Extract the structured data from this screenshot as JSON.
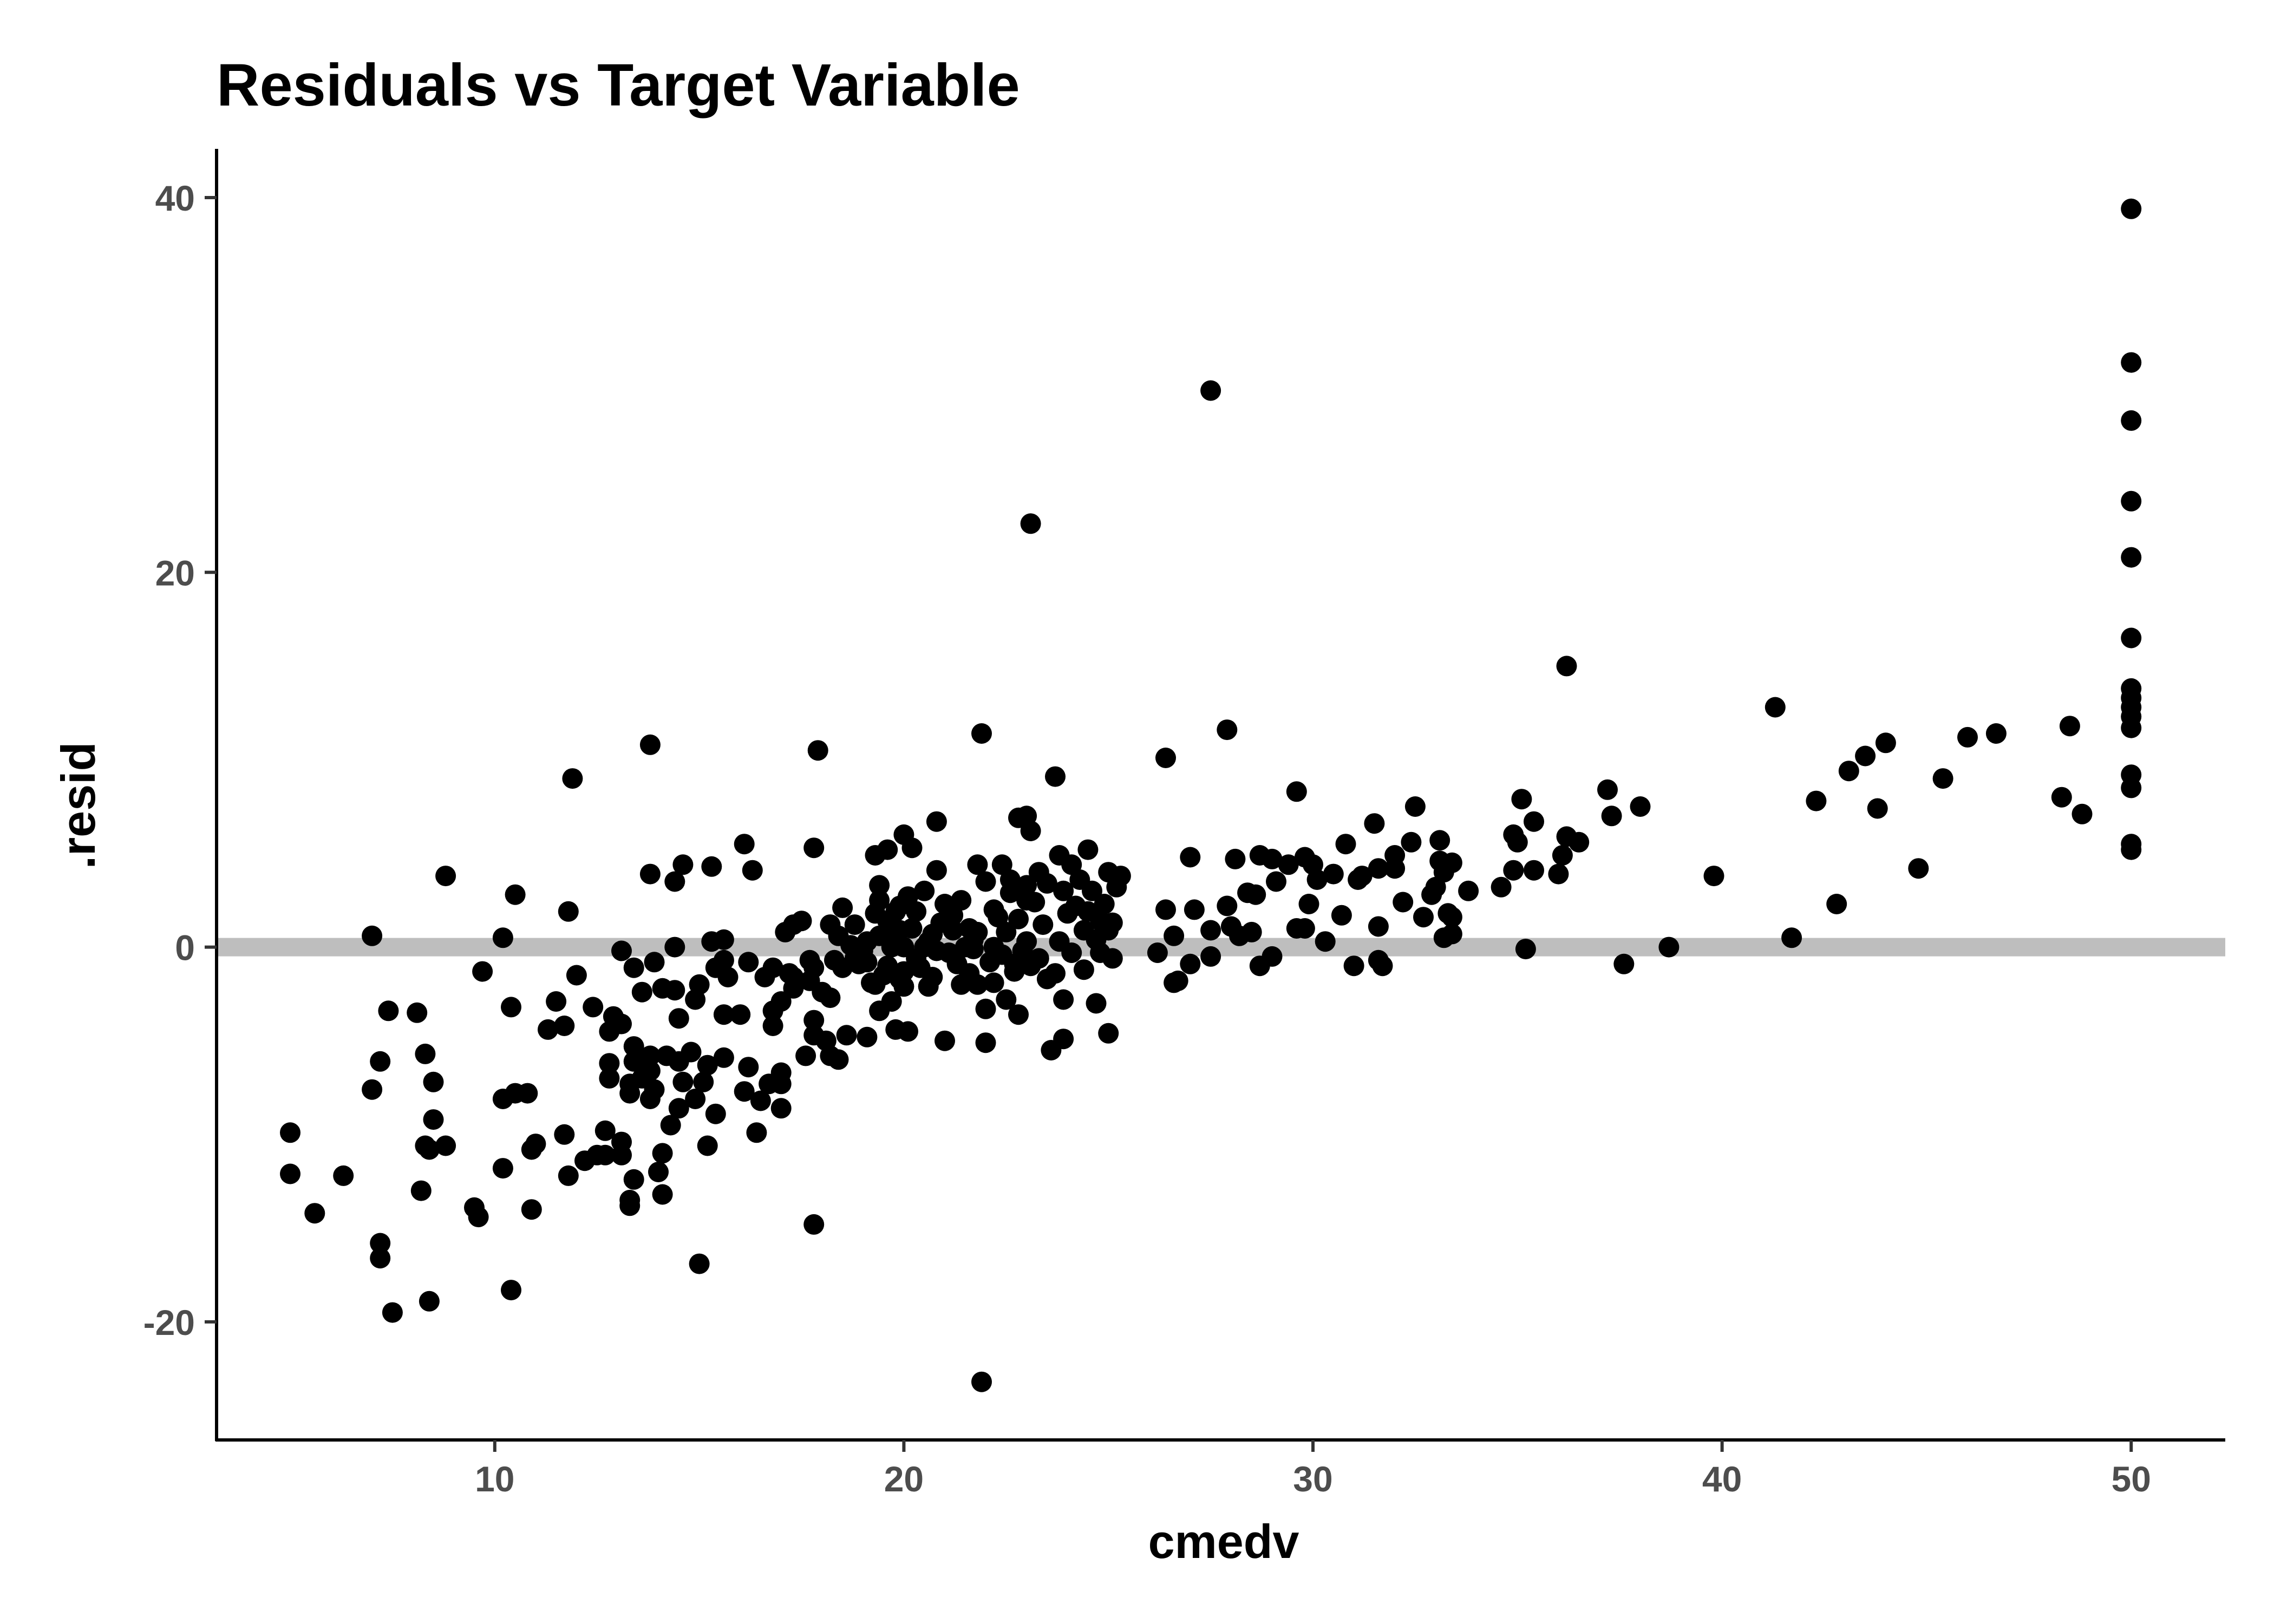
{
  "chart_data": {
    "type": "scatter",
    "title": "Residuals vs Target Variable",
    "xlabel": "cmedv",
    "ylabel": ".resid",
    "xlim": [
      3.2,
      52.3
    ],
    "ylim": [
      -26.3,
      42.6
    ],
    "x_ticks": [
      10,
      20,
      30,
      40,
      50
    ],
    "y_ticks": [
      -20,
      0,
      20,
      40
    ],
    "reference_line": {
      "y": 0,
      "color": "#bebebe"
    },
    "point_color": "#000000",
    "grid": false,
    "legend": "none",
    "points": [
      [
        5.0,
        -9.9
      ],
      [
        5.0,
        -12.1
      ],
      [
        5.6,
        -14.2
      ],
      [
        6.3,
        -12.2
      ],
      [
        7.0,
        0.6
      ],
      [
        7.0,
        -7.6
      ],
      [
        7.2,
        -6.1
      ],
      [
        7.2,
        -15.8
      ],
      [
        7.2,
        -16.6
      ],
      [
        7.4,
        -3.4
      ],
      [
        7.5,
        -19.5
      ],
      [
        8.1,
        -3.5
      ],
      [
        8.2,
        -13.0
      ],
      [
        8.3,
        -5.7
      ],
      [
        8.3,
        -10.6
      ],
      [
        8.4,
        -10.8
      ],
      [
        8.4,
        -18.9
      ],
      [
        8.5,
        -7.2
      ],
      [
        8.5,
        -9.2
      ],
      [
        8.8,
        -10.6
      ],
      [
        8.8,
        3.8
      ],
      [
        9.5,
        -13.9
      ],
      [
        9.6,
        -14.4
      ],
      [
        9.7,
        -1.3
      ],
      [
        10.2,
        -11.8
      ],
      [
        10.2,
        -8.1
      ],
      [
        10.2,
        0.5
      ],
      [
        10.4,
        -3.2
      ],
      [
        10.4,
        -18.3
      ],
      [
        10.5,
        2.8
      ],
      [
        10.5,
        -7.8
      ],
      [
        10.8,
        -7.8
      ],
      [
        10.9,
        -10.8
      ],
      [
        10.9,
        -14.0
      ],
      [
        11.0,
        -10.5
      ],
      [
        11.3,
        -4.4
      ],
      [
        11.5,
        -2.9
      ],
      [
        11.7,
        -10.0
      ],
      [
        11.7,
        -4.2
      ],
      [
        11.8,
        -12.2
      ],
      [
        11.8,
        1.9
      ],
      [
        11.9,
        9.0
      ],
      [
        12.0,
        -1.5
      ],
      [
        12.2,
        -11.4
      ],
      [
        12.4,
        -3.2
      ],
      [
        12.5,
        -11.1
      ],
      [
        12.7,
        -9.8
      ],
      [
        12.7,
        -11.1
      ],
      [
        12.8,
        -4.5
      ],
      [
        12.8,
        -6.2
      ],
      [
        12.8,
        -7.0
      ],
      [
        12.9,
        -3.7
      ],
      [
        13.1,
        -4.1
      ],
      [
        13.1,
        -10.4
      ],
      [
        13.1,
        -11.1
      ],
      [
        13.1,
        -0.2
      ],
      [
        13.3,
        -13.5
      ],
      [
        13.3,
        -13.8
      ],
      [
        13.3,
        -7.3
      ],
      [
        13.3,
        -7.8
      ],
      [
        13.4,
        -5.3
      ],
      [
        13.4,
        -6.1
      ],
      [
        13.4,
        -1.1
      ],
      [
        13.4,
        -12.4
      ],
      [
        13.6,
        -7.0
      ],
      [
        13.6,
        -2.4
      ],
      [
        13.8,
        -5.8
      ],
      [
        13.8,
        -6.6
      ],
      [
        13.8,
        -8.1
      ],
      [
        13.8,
        3.9
      ],
      [
        13.8,
        10.8
      ],
      [
        13.9,
        -0.8
      ],
      [
        13.9,
        -7.6
      ],
      [
        14.0,
        -12.0
      ],
      [
        14.1,
        -2.2
      ],
      [
        14.1,
        -11.0
      ],
      [
        14.1,
        -13.2
      ],
      [
        14.2,
        -5.8
      ],
      [
        14.3,
        -9.5
      ],
      [
        14.4,
        3.5
      ],
      [
        14.4,
        -2.3
      ],
      [
        14.4,
        0.0
      ],
      [
        14.5,
        -6.1
      ],
      [
        14.5,
        -3.8
      ],
      [
        14.5,
        -8.6
      ],
      [
        14.6,
        4.4
      ],
      [
        14.6,
        -7.2
      ],
      [
        14.8,
        -5.6
      ],
      [
        14.9,
        -2.8
      ],
      [
        14.9,
        -8.1
      ],
      [
        15.0,
        -16.9
      ],
      [
        15.0,
        -2.0
      ],
      [
        15.1,
        -7.2
      ],
      [
        15.2,
        -10.6
      ],
      [
        15.2,
        -6.3
      ],
      [
        15.3,
        4.3
      ],
      [
        15.3,
        0.3
      ],
      [
        15.4,
        -8.9
      ],
      [
        15.4,
        -1.1
      ],
      [
        15.6,
        -3.6
      ],
      [
        15.6,
        -5.9
      ],
      [
        15.6,
        -0.7
      ],
      [
        15.6,
        0.4
      ],
      [
        15.7,
        -1.6
      ],
      [
        16.0,
        -3.6
      ],
      [
        16.1,
        -7.7
      ],
      [
        16.1,
        5.5
      ],
      [
        16.2,
        -6.4
      ],
      [
        16.2,
        -0.8
      ],
      [
        16.3,
        4.1
      ],
      [
        16.4,
        -9.9
      ],
      [
        16.5,
        -8.2
      ],
      [
        16.6,
        -1.6
      ],
      [
        16.7,
        -7.3
      ],
      [
        16.8,
        -3.4
      ],
      [
        16.8,
        -4.2
      ],
      [
        16.8,
        -1.1
      ],
      [
        17.0,
        -8.6
      ],
      [
        17.0,
        -6.7
      ],
      [
        17.0,
        -2.9
      ],
      [
        17.0,
        -7.3
      ],
      [
        17.1,
        0.8
      ],
      [
        17.2,
        -1.4
      ],
      [
        17.3,
        -1.6
      ],
      [
        17.3,
        1.2
      ],
      [
        17.3,
        -2.2
      ],
      [
        17.5,
        1.4
      ],
      [
        17.6,
        -5.8
      ],
      [
        17.7,
        -0.7
      ],
      [
        17.7,
        -1.8
      ],
      [
        17.8,
        -3.9
      ],
      [
        17.8,
        -4.7
      ],
      [
        17.8,
        -14.8
      ],
      [
        17.8,
        5.3
      ],
      [
        17.8,
        -1.1
      ],
      [
        17.9,
        10.5
      ],
      [
        18.0,
        -2.4
      ],
      [
        18.1,
        -5.0
      ],
      [
        18.2,
        -5.8
      ],
      [
        18.2,
        1.2
      ],
      [
        18.2,
        -2.7
      ],
      [
        18.3,
        -0.7
      ],
      [
        18.4,
        -6.0
      ],
      [
        18.4,
        0.6
      ],
      [
        18.5,
        2.1
      ],
      [
        18.5,
        -1.1
      ],
      [
        18.6,
        -4.7
      ],
      [
        18.7,
        0.1
      ],
      [
        18.8,
        1.2
      ],
      [
        18.8,
        -0.6
      ],
      [
        18.9,
        -0.9
      ],
      [
        19.0,
        -0.2
      ],
      [
        19.1,
        -0.8
      ],
      [
        19.1,
        0.3
      ],
      [
        19.1,
        -4.8
      ],
      [
        19.2,
        -1.9
      ],
      [
        19.3,
        4.9
      ],
      [
        19.3,
        1.8
      ],
      [
        19.3,
        -2.0
      ],
      [
        19.4,
        3.3
      ],
      [
        19.4,
        2.5
      ],
      [
        19.4,
        -3.4
      ],
      [
        19.4,
        0.6
      ],
      [
        19.5,
        -1.5
      ],
      [
        19.6,
        1.4
      ],
      [
        19.6,
        -1.0
      ],
      [
        19.6,
        5.2
      ],
      [
        19.7,
        0.0
      ],
      [
        19.7,
        -2.9
      ],
      [
        19.8,
        -4.4
      ],
      [
        19.8,
        1.9
      ],
      [
        19.8,
        0.6
      ],
      [
        19.9,
        2.2
      ],
      [
        19.9,
        -1.7
      ],
      [
        19.9,
        0.9
      ],
      [
        20.0,
        6.0
      ],
      [
        20.0,
        0.0
      ],
      [
        20.0,
        -1.3
      ],
      [
        20.0,
        -2.1
      ],
      [
        20.1,
        2.7
      ],
      [
        20.1,
        -4.5
      ],
      [
        20.2,
        5.3
      ],
      [
        20.2,
        1.0
      ],
      [
        20.3,
        1.9
      ],
      [
        20.3,
        -0.6
      ],
      [
        20.4,
        -1.1
      ],
      [
        20.5,
        0.0
      ],
      [
        20.5,
        3.0
      ],
      [
        20.6,
        -2.1
      ],
      [
        20.6,
        0.3
      ],
      [
        20.7,
        0.7
      ],
      [
        20.7,
        -1.6
      ],
      [
        20.8,
        4.1
      ],
      [
        20.8,
        -0.2
      ],
      [
        20.8,
        6.7
      ],
      [
        20.9,
        1.3
      ],
      [
        21.0,
        -5.0
      ],
      [
        21.0,
        2.3
      ],
      [
        21.1,
        -0.3
      ],
      [
        21.2,
        1.7
      ],
      [
        21.2,
        0.9
      ],
      [
        21.3,
        -0.9
      ],
      [
        21.4,
        2.5
      ],
      [
        21.4,
        -2.0
      ],
      [
        21.5,
        0.0
      ],
      [
        21.6,
        -1.4
      ],
      [
        21.6,
        1.0
      ],
      [
        21.7,
        0.4
      ],
      [
        21.7,
        -0.1
      ],
      [
        21.8,
        4.4
      ],
      [
        21.8,
        -2.0
      ],
      [
        21.8,
        0.8
      ],
      [
        21.9,
        11.4
      ],
      [
        21.9,
        -23.2
      ],
      [
        22.0,
        3.5
      ],
      [
        22.0,
        -3.3
      ],
      [
        22.0,
        -5.1
      ],
      [
        22.1,
        -0.8
      ],
      [
        22.2,
        0.0
      ],
      [
        22.2,
        2.0
      ],
      [
        22.2,
        -1.9
      ],
      [
        22.3,
        1.6
      ],
      [
        22.4,
        4.4
      ],
      [
        22.4,
        -0.4
      ],
      [
        22.5,
        -2.8
      ],
      [
        22.5,
        0.8
      ],
      [
        22.6,
        2.9
      ],
      [
        22.6,
        3.6
      ],
      [
        22.7,
        -1.3
      ],
      [
        22.7,
        -0.9
      ],
      [
        22.8,
        6.9
      ],
      [
        22.8,
        -3.6
      ],
      [
        22.8,
        1.5
      ],
      [
        22.9,
        -0.2
      ],
      [
        23.0,
        3.3
      ],
      [
        23.0,
        0.3
      ],
      [
        23.0,
        2.5
      ],
      [
        23.0,
        7.0
      ],
      [
        23.1,
        22.6
      ],
      [
        23.1,
        -1.0
      ],
      [
        23.1,
        6.2
      ],
      [
        23.2,
        2.4
      ],
      [
        23.3,
        4.0
      ],
      [
        23.3,
        -0.6
      ],
      [
        23.4,
        1.2
      ],
      [
        23.5,
        3.4
      ],
      [
        23.5,
        -1.7
      ],
      [
        23.6,
        -5.5
      ],
      [
        23.7,
        9.1
      ],
      [
        23.7,
        -1.4
      ],
      [
        23.8,
        4.9
      ],
      [
        23.8,
        0.3
      ],
      [
        23.9,
        -2.8
      ],
      [
        23.9,
        3.0
      ],
      [
        23.9,
        -4.9
      ],
      [
        24.0,
        1.8
      ],
      [
        24.1,
        -0.3
      ],
      [
        24.1,
        4.4
      ],
      [
        24.2,
        2.2
      ],
      [
        24.3,
        3.6
      ],
      [
        24.4,
        -1.2
      ],
      [
        24.4,
        0.9
      ],
      [
        24.5,
        5.2
      ],
      [
        24.5,
        1.9
      ],
      [
        24.6,
        3.0
      ],
      [
        24.7,
        0.4
      ],
      [
        24.7,
        -3.0
      ],
      [
        24.8,
        1.4
      ],
      [
        24.8,
        -0.3
      ],
      [
        24.9,
        2.3
      ],
      [
        25.0,
        4.0
      ],
      [
        25.0,
        -4.6
      ],
      [
        25.0,
        0.9
      ],
      [
        25.1,
        1.3
      ],
      [
        25.1,
        -0.6
      ],
      [
        25.2,
        3.2
      ],
      [
        25.3,
        3.8
      ],
      [
        26.2,
        -0.3
      ],
      [
        26.4,
        10.1
      ],
      [
        26.4,
        2.0
      ],
      [
        26.6,
        0.6
      ],
      [
        26.6,
        -1.9
      ],
      [
        26.7,
        -1.8
      ],
      [
        27.0,
        4.8
      ],
      [
        27.0,
        -0.9
      ],
      [
        27.1,
        2.0
      ],
      [
        27.5,
        29.7
      ],
      [
        27.5,
        0.9
      ],
      [
        27.5,
        -0.5
      ],
      [
        27.9,
        11.6
      ],
      [
        27.9,
        2.2
      ],
      [
        28.0,
        1.1
      ],
      [
        28.1,
        4.7
      ],
      [
        28.2,
        0.6
      ],
      [
        28.4,
        2.9
      ],
      [
        28.5,
        0.8
      ],
      [
        28.6,
        2.8
      ],
      [
        28.7,
        -1.0
      ],
      [
        28.7,
        4.9
      ],
      [
        29.0,
        -0.5
      ],
      [
        29.0,
        4.7
      ],
      [
        29.1,
        3.5
      ],
      [
        29.4,
        4.4
      ],
      [
        29.6,
        8.3
      ],
      [
        29.6,
        1.0
      ],
      [
        29.8,
        4.8
      ],
      [
        29.8,
        1.0
      ],
      [
        29.9,
        2.3
      ],
      [
        30.0,
        4.4
      ],
      [
        30.1,
        3.6
      ],
      [
        30.3,
        0.3
      ],
      [
        30.5,
        3.9
      ],
      [
        30.7,
        1.7
      ],
      [
        30.8,
        5.5
      ],
      [
        31.0,
        -1.0
      ],
      [
        31.1,
        3.6
      ],
      [
        31.2,
        3.8
      ],
      [
        31.5,
        6.6
      ],
      [
        31.6,
        -0.7
      ],
      [
        31.6,
        4.2
      ],
      [
        31.6,
        1.1
      ],
      [
        31.7,
        -1.0
      ],
      [
        32.0,
        4.9
      ],
      [
        32.0,
        4.2
      ],
      [
        32.2,
        2.4
      ],
      [
        32.4,
        5.6
      ],
      [
        32.5,
        7.5
      ],
      [
        32.7,
        1.6
      ],
      [
        32.9,
        2.8
      ],
      [
        33.0,
        3.2
      ],
      [
        33.1,
        4.6
      ],
      [
        33.1,
        5.7
      ],
      [
        33.2,
        4.0
      ],
      [
        33.2,
        0.5
      ],
      [
        33.3,
        1.8
      ],
      [
        33.4,
        1.6
      ],
      [
        33.4,
        4.5
      ],
      [
        33.4,
        0.7
      ],
      [
        33.8,
        3.0
      ],
      [
        34.6,
        3.2
      ],
      [
        34.9,
        6.0
      ],
      [
        34.9,
        4.1
      ],
      [
        35.0,
        5.6
      ],
      [
        35.1,
        7.9
      ],
      [
        35.2,
        -0.1
      ],
      [
        35.4,
        6.7
      ],
      [
        35.4,
        4.1
      ],
      [
        36.0,
        3.9
      ],
      [
        36.1,
        4.9
      ],
      [
        36.2,
        15.0
      ],
      [
        36.2,
        5.9
      ],
      [
        36.5,
        5.6
      ],
      [
        37.2,
        8.4
      ],
      [
        37.3,
        7.0
      ],
      [
        37.6,
        -0.9
      ],
      [
        38.0,
        7.5
      ],
      [
        38.7,
        0.0
      ],
      [
        39.8,
        3.8
      ],
      [
        41.3,
        12.8
      ],
      [
        41.7,
        0.5
      ],
      [
        42.3,
        7.8
      ],
      [
        42.8,
        2.3
      ],
      [
        43.1,
        9.4
      ],
      [
        43.5,
        10.2
      ],
      [
        43.8,
        7.4
      ],
      [
        44.0,
        10.9
      ],
      [
        44.8,
        4.2
      ],
      [
        45.4,
        9.0
      ],
      [
        46.0,
        11.2
      ],
      [
        46.7,
        11.4
      ],
      [
        48.3,
        8.0
      ],
      [
        48.5,
        11.8
      ],
      [
        48.8,
        7.1
      ],
      [
        50.0,
        39.4
      ],
      [
        50.0,
        31.2
      ],
      [
        50.0,
        28.1
      ],
      [
        50.0,
        23.8
      ],
      [
        50.0,
        20.8
      ],
      [
        50.0,
        16.5
      ],
      [
        50.0,
        13.8
      ],
      [
        50.0,
        13.3
      ],
      [
        50.0,
        12.8
      ],
      [
        50.0,
        12.3
      ],
      [
        50.0,
        11.7
      ],
      [
        50.0,
        9.2
      ],
      [
        50.0,
        8.5
      ],
      [
        50.0,
        5.5
      ],
      [
        50.0,
        5.2
      ]
    ]
  }
}
